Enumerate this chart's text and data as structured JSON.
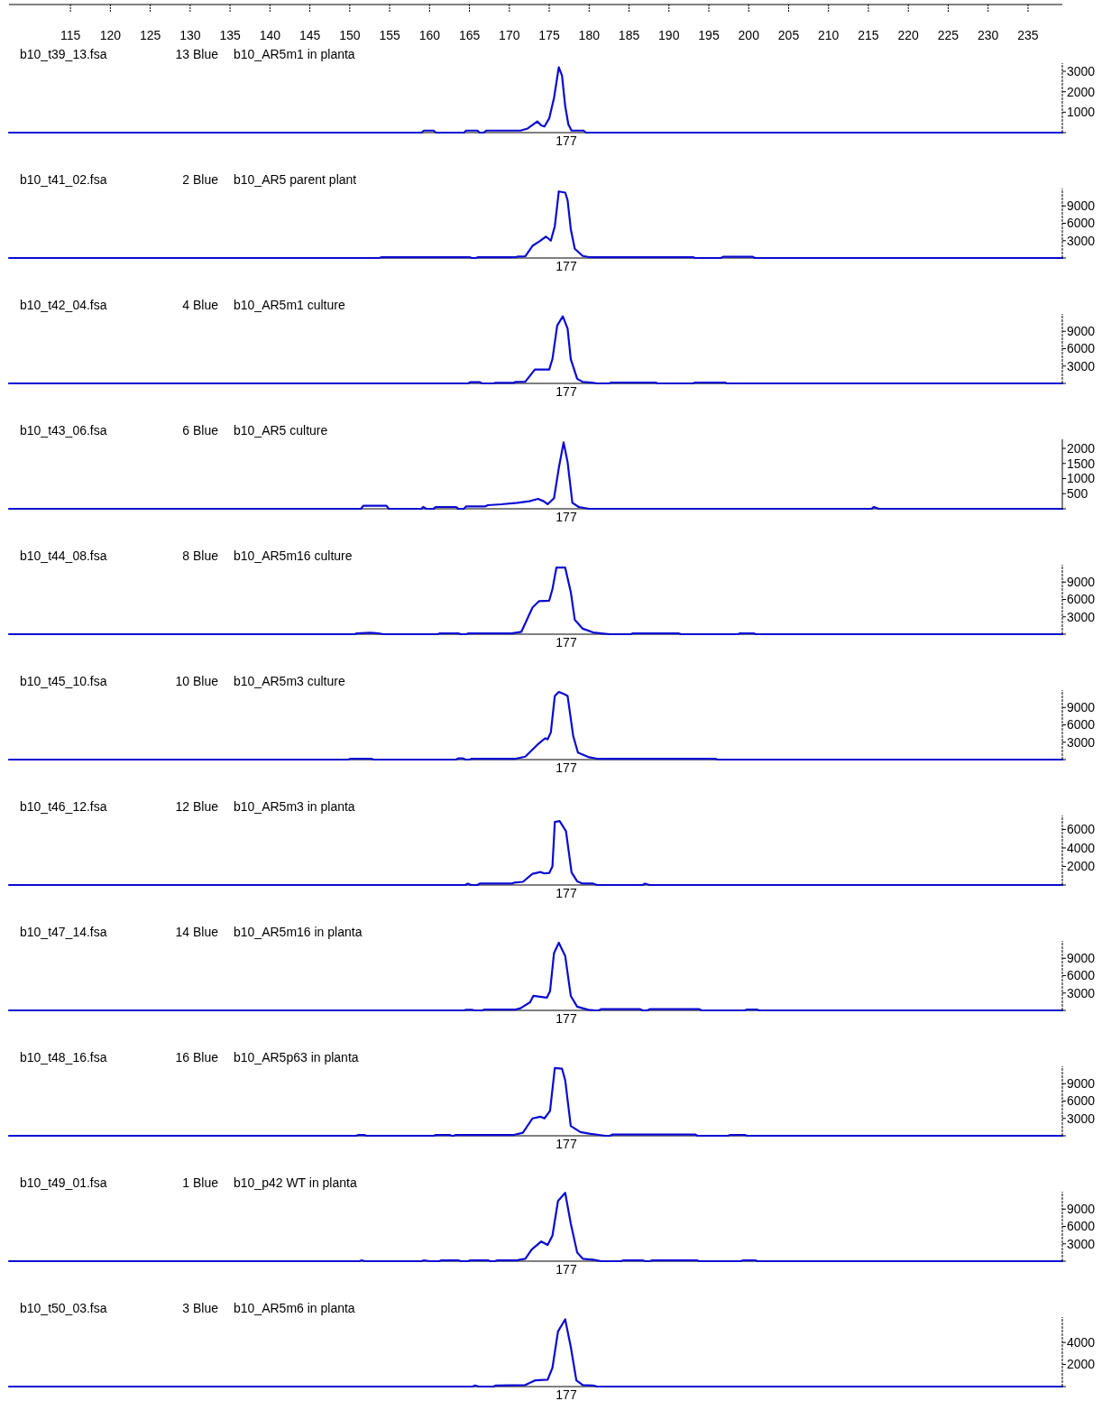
{
  "chart_data": [
    {
      "type": "line",
      "title": "b10_t39_13.fsa",
      "subtitle": "13 Blue",
      "annotations": [
        "b10_AR5m1 in planta",
        "177"
      ],
      "xlim": [
        107.3,
        239.3
      ],
      "xticks": [
        115,
        120,
        125,
        130,
        135,
        140,
        145,
        150,
        155,
        160,
        165,
        170,
        175,
        180,
        185,
        190,
        195,
        200,
        205,
        210,
        215,
        220,
        225,
        230,
        235
      ],
      "ylim": [
        0,
        3400
      ],
      "yticks": [
        1000,
        2000,
        3000
      ],
      "marker": "none",
      "line_style": "solid",
      "series": [
        {
          "color": "#0a0ad2",
          "x": [
            107.3,
            159.0,
            159.3,
            160.5,
            160.8,
            164.3,
            164.6,
            166.0,
            166.3,
            166.8,
            167.1,
            171.4,
            172.3,
            173.0,
            173.5,
            174.0,
            174.4,
            175.0,
            175.6,
            176.2,
            176.6,
            177.0,
            177.4,
            177.8,
            179.3,
            179.6,
            239.3
          ],
          "values": [
            0,
            0,
            100,
            100,
            0,
            0,
            100,
            100,
            0,
            0,
            100,
            100,
            200,
            400,
            550,
            350,
            300,
            700,
            1700,
            3200,
            2800,
            1300,
            400,
            100,
            100,
            0,
            0
          ]
        }
      ]
    },
    {
      "type": "line",
      "title": "b10_t41_02.fsa",
      "subtitle": "2 Blue",
      "annotations": [
        "b10_AR5 parent plant",
        "177"
      ],
      "xlim": [
        107.3,
        239.3
      ],
      "ylim": [
        0,
        12000
      ],
      "yticks": [
        3000,
        6000,
        9000
      ],
      "tick_labels": "y",
      "marker": "none",
      "line_style": "solid",
      "series": [
        {
          "color": "#0a0ad2",
          "x": [
            107.3,
            153.7,
            154.0,
            165.0,
            165.3,
            165.8,
            166.1,
            170.8,
            171.1,
            172.0,
            172.9,
            173.8,
            174.6,
            175.2,
            175.7,
            176.2,
            177.0,
            177.3,
            177.7,
            178.2,
            179.2,
            180.0,
            193.0,
            193.3,
            196.5,
            196.8,
            200.5,
            200.8,
            239.3
          ],
          "values": [
            0,
            0,
            150,
            150,
            0,
            0,
            150,
            150,
            250,
            300,
            2100,
            2900,
            3700,
            3000,
            5500,
            11500,
            11300,
            10000,
            5000,
            1600,
            350,
            150,
            150,
            0,
            0,
            200,
            200,
            0,
            0
          ]
        }
      ]
    },
    {
      "type": "line",
      "title": "b10_t42_04.fsa",
      "subtitle": "4 Blue",
      "annotations": [
        "b10_AR5m1 culture",
        "177"
      ],
      "xlim": [
        107.3,
        239.3
      ],
      "ylim": [
        0,
        12000
      ],
      "yticks": [
        3000,
        6000,
        9000
      ],
      "tick_labels": "y",
      "marker": "none",
      "line_style": "solid",
      "series": [
        {
          "color": "#0a0ad2",
          "x": [
            107.3,
            164.8,
            165.1,
            166.3,
            166.6,
            168.0,
            168.3,
            170.5,
            170.8,
            172.0,
            173.2,
            175.0,
            175.4,
            176.0,
            176.7,
            177.3,
            177.7,
            178.5,
            179.2,
            180.3,
            181.0,
            182.5,
            182.8,
            188.3,
            188.6,
            193.0,
            193.3,
            197.0,
            197.3,
            239.3
          ],
          "values": [
            0,
            0,
            200,
            200,
            0,
            0,
            100,
            100,
            250,
            300,
            2400,
            2400,
            4200,
            10000,
            11600,
            9500,
            4200,
            800,
            250,
            150,
            0,
            0,
            150,
            150,
            0,
            0,
            150,
            150,
            0,
            0
          ]
        }
      ]
    },
    {
      "type": "line",
      "title": "b10_t43_06.fsa",
      "subtitle": "6 Blue",
      "annotations": [
        "b10_AR5 culture",
        "177"
      ],
      "xlim": [
        107.3,
        239.3
      ],
      "ylim": [
        0,
        2300
      ],
      "yticks": [
        500,
        1000,
        1500,
        2000
      ],
      "tick_labels": "y",
      "marker": "none",
      "line_style": "solid",
      "series": [
        {
          "color": "#0a0ad2",
          "x": [
            107.3,
            151.4,
            151.7,
            154.6,
            154.9,
            159.0,
            159.2,
            159.6,
            160.5,
            160.8,
            163.3,
            163.6,
            164.3,
            164.6,
            167.0,
            167.3,
            169.0,
            171.0,
            172.5,
            173.6,
            174.3,
            174.8,
            175.6,
            176.2,
            176.8,
            177.3,
            177.9,
            178.7,
            180.0,
            215.4,
            215.7,
            216.3,
            239.3
          ],
          "values": [
            0,
            0,
            100,
            100,
            0,
            0,
            60,
            0,
            0,
            60,
            60,
            0,
            0,
            80,
            80,
            120,
            150,
            200,
            250,
            330,
            250,
            150,
            350,
            1350,
            2200,
            1550,
            200,
            60,
            0,
            0,
            60,
            0,
            0
          ]
        }
      ]
    },
    {
      "type": "line",
      "title": "b10_t44_08.fsa",
      "subtitle": "8 Blue",
      "annotations": [
        "b10_AR5m16 culture",
        "177"
      ],
      "xlim": [
        107.3,
        239.3
      ],
      "ylim": [
        0,
        12000
      ],
      "yticks": [
        3000,
        6000,
        9000
      ],
      "tick_labels": "y",
      "marker": "none",
      "line_style": "solid",
      "series": [
        {
          "color": "#0a0ad2",
          "x": [
            107.3,
            150.6,
            150.9,
            152.6,
            153.6,
            154.2,
            161.0,
            161.3,
            163.6,
            163.9,
            164.6,
            164.9,
            170.3,
            171.5,
            172.9,
            173.7,
            175.0,
            175.4,
            175.9,
            177.0,
            177.7,
            178.2,
            179.2,
            180.5,
            181.5,
            182.6,
            185.2,
            185.5,
            191.2,
            191.5,
            198.6,
            198.9,
            200.6,
            200.9,
            239.3
          ],
          "values": [
            0,
            0,
            150,
            250,
            150,
            0,
            0,
            150,
            150,
            0,
            0,
            150,
            150,
            400,
            4600,
            5700,
            5800,
            7800,
            11500,
            11500,
            7300,
            2500,
            950,
            300,
            150,
            0,
            0,
            150,
            150,
            0,
            0,
            150,
            150,
            0,
            0
          ]
        }
      ]
    },
    {
      "type": "line",
      "title": "b10_t45_10.fsa",
      "subtitle": "10 Blue",
      "annotations": [
        "b10_AR5m3 culture",
        "177"
      ],
      "xlim": [
        107.3,
        239.3
      ],
      "ylim": [
        0,
        12000
      ],
      "yticks": [
        3000,
        6000,
        9000
      ],
      "tick_labels": "y",
      "marker": "none",
      "line_style": "solid",
      "series": [
        {
          "color": "#0a0ad2",
          "x": [
            107.3,
            149.8,
            150.1,
            152.7,
            153.0,
            163.3,
            163.6,
            164.2,
            164.5,
            165.0,
            165.3,
            170.8,
            172.0,
            173.7,
            174.5,
            174.8,
            175.2,
            175.7,
            176.2,
            176.9,
            177.3,
            178.0,
            178.6,
            180.0,
            181.0,
            195.8,
            196.1,
            239.3
          ],
          "values": [
            0,
            0,
            150,
            150,
            0,
            0,
            200,
            200,
            0,
            0,
            150,
            150,
            500,
            2800,
            3700,
            3500,
            4700,
            11000,
            11700,
            11300,
            11000,
            4100,
            1200,
            400,
            150,
            150,
            0,
            0
          ]
        }
      ]
    },
    {
      "type": "line",
      "title": "b10_t46_12.fsa",
      "subtitle": "12 Blue",
      "annotations": [
        "b10_AR5m3 in planta",
        "177"
      ],
      "xlim": [
        107.3,
        239.3
      ],
      "ylim": [
        0,
        7500
      ],
      "yticks": [
        2000,
        4000,
        6000
      ],
      "tick_labels": "y",
      "marker": "none",
      "line_style": "solid",
      "series": [
        {
          "color": "#0a0ad2",
          "x": [
            107.3,
            164.5,
            164.8,
            165.2,
            166.0,
            166.3,
            170.3,
            170.6,
            171.7,
            172.9,
            173.9,
            174.4,
            175.0,
            175.4,
            175.7,
            176.3,
            177.1,
            177.8,
            178.5,
            179.2,
            180.5,
            181.0,
            186.7,
            187.0,
            187.6,
            239.3
          ],
          "values": [
            0,
            0,
            150,
            0,
            0,
            150,
            150,
            250,
            340,
            1200,
            1400,
            1250,
            1300,
            2000,
            6800,
            6900,
            5800,
            1350,
            400,
            150,
            150,
            0,
            0,
            150,
            0,
            0
          ]
        }
      ]
    },
    {
      "type": "line",
      "title": "b10_t47_14.fsa",
      "subtitle": "14 Blue",
      "annotations": [
        "b10_AR5m16 in planta",
        "177"
      ],
      "xlim": [
        107.3,
        239.3
      ],
      "ylim": [
        0,
        12000
      ],
      "yticks": [
        3000,
        6000,
        9000
      ],
      "tick_labels": "y",
      "marker": "none",
      "line_style": "solid",
      "series": [
        {
          "color": "#0a0ad2",
          "x": [
            107.3,
            164.3,
            164.6,
            165.3,
            165.6,
            166.6,
            166.9,
            170.8,
            171.4,
            172.6,
            173.0,
            174.7,
            175.1,
            175.6,
            176.2,
            177.0,
            177.7,
            178.5,
            179.9,
            180.8,
            181.2,
            181.5,
            186.4,
            186.7,
            187.3,
            187.6,
            193.8,
            194.1,
            199.5,
            199.8,
            201.0,
            201.3,
            239.3
          ],
          "values": [
            0,
            0,
            100,
            100,
            0,
            0,
            150,
            150,
            370,
            1400,
            2500,
            2200,
            3300,
            9900,
            11700,
            9400,
            2500,
            640,
            100,
            0,
            0,
            200,
            200,
            0,
            0,
            200,
            200,
            0,
            0,
            150,
            150,
            0,
            0
          ]
        }
      ]
    },
    {
      "type": "line",
      "title": "b10_t48_16.fsa",
      "subtitle": "16 Blue",
      "annotations": [
        "b10_AR5p63 in planta",
        "177"
      ],
      "xlim": [
        107.3,
        239.3
      ],
      "ylim": [
        0,
        12000
      ],
      "yticks": [
        3000,
        6000,
        9000
      ],
      "tick_labels": "y",
      "marker": "none",
      "line_style": "solid",
      "series": [
        {
          "color": "#0a0ad2",
          "x": [
            107.3,
            150.8,
            151.1,
            151.8,
            152.1,
            160.5,
            160.8,
            162.5,
            162.8,
            163.0,
            163.3,
            170.6,
            171.7,
            172.9,
            173.9,
            174.4,
            175.1,
            175.7,
            176.6,
            177.0,
            177.7,
            178.9,
            180.0,
            181.0,
            182.0,
            182.6,
            182.9,
            193.3,
            193.6,
            197.4,
            197.7,
            199.5,
            199.8,
            239.3
          ],
          "values": [
            0,
            0,
            150,
            150,
            0,
            0,
            150,
            150,
            0,
            0,
            150,
            150,
            530,
            3000,
            3300,
            3000,
            4300,
            11700,
            11600,
            9600,
            1700,
            640,
            370,
            200,
            0,
            0,
            200,
            200,
            0,
            0,
            150,
            150,
            0,
            0
          ]
        }
      ]
    },
    {
      "type": "line",
      "title": "b10_t49_01.fsa",
      "subtitle": "1 Blue",
      "annotations": [
        "b10_p42 WT in planta",
        "177"
      ],
      "xlim": [
        107.3,
        239.3
      ],
      "ylim": [
        0,
        12000
      ],
      "yticks": [
        3000,
        6000,
        9000
      ],
      "tick_labels": "y",
      "marker": "none",
      "line_style": "solid",
      "series": [
        {
          "color": "#0a0ad2",
          "x": [
            107.3,
            151.2,
            151.5,
            151.9,
            159.0,
            159.3,
            160.0,
            161.2,
            161.5,
            163.6,
            163.9,
            164.8,
            165.1,
            167.3,
            167.6,
            168.2,
            168.5,
            171.0,
            171.3,
            172.0,
            172.8,
            174.0,
            174.8,
            175.4,
            176.1,
            177.0,
            177.7,
            178.5,
            179.2,
            180.5,
            181.5,
            184.0,
            184.3,
            186.7,
            187.0,
            187.6,
            187.9,
            193.5,
            193.8,
            199.0,
            199.3,
            200.8,
            201.1,
            239.3
          ],
          "values": [
            0,
            0,
            150,
            0,
            0,
            150,
            0,
            0,
            150,
            150,
            0,
            0,
            150,
            150,
            0,
            0,
            150,
            150,
            250,
            420,
            2000,
            3400,
            2800,
            4400,
            10400,
            11800,
            6500,
            1500,
            420,
            250,
            0,
            0,
            150,
            150,
            0,
            0,
            150,
            150,
            0,
            0,
            150,
            150,
            0,
            0
          ]
        }
      ]
    },
    {
      "type": "line",
      "title": "b10_t50_03.fsa",
      "subtitle": "3 Blue",
      "annotations": [
        "b10_AR5m6 in planta",
        "177"
      ],
      "xlim": [
        107.3,
        239.3
      ],
      "ylim": [
        0,
        6300
      ],
      "yticks": [
        2000,
        4000
      ],
      "tick_labels": "y",
      "marker": "none",
      "line_style": "solid",
      "series": [
        {
          "color": "#0a0ad2",
          "x": [
            107.3,
            165.4,
            165.7,
            166.2,
            168.0,
            168.3,
            172.0,
            173.2,
            174.8,
            175.4,
            176.1,
            177.0,
            177.7,
            178.4,
            179.2,
            180.5,
            181.0,
            239.3
          ],
          "values": [
            0,
            0,
            100,
            0,
            0,
            100,
            140,
            560,
            620,
            1700,
            5000,
            6100,
            3600,
            560,
            140,
            100,
            0,
            0
          ]
        }
      ]
    }
  ]
}
